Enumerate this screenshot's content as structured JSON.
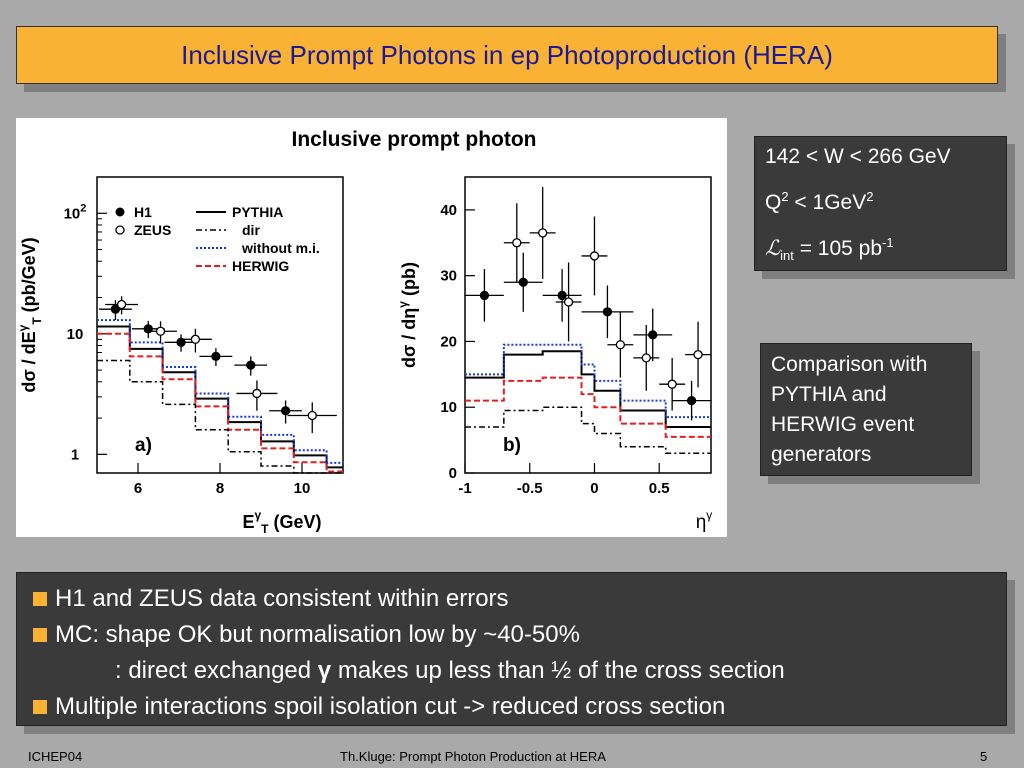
{
  "slide": {
    "title": "Inclusive Prompt Photons in ep Photoproduction (HERA)",
    "info_box": {
      "line1": "142 < W < 266 GeV",
      "line2_q": "Q",
      "line2_q_sup": "2",
      "line2_mid": " < 1GeV",
      "line2_sup": "2",
      "line3_l": "ℒ",
      "line3_sub": "int",
      "line3_mid": " = 105 pb",
      "line3_sup": "-1"
    },
    "comparison_box": "Comparison with PYTHIA and HERWIG event generators",
    "bullets": [
      "H1 and ZEUS data consistent within errors",
      "MC: shape OK but normalisation low by ~40-50%"
    ],
    "indent_line_pre": ": direct exchanged ",
    "indent_line_gamma": "γ",
    "indent_line_post": " makes up less than ½ of the cross section",
    "bullet3": "Multiple interactions spoil isolation cut -> reduced cross section",
    "footer_left": "ICHEP04",
    "footer_center": "Th.Kluge: Prompt Photon Production at HERA",
    "footer_right": "5",
    "colors": {
      "title_bg": "#f9b233",
      "title_text": "#1a1a99",
      "box_bg": "#3a3a3a",
      "bullet": "#f9b233",
      "herwig": "#e02020",
      "mi": "#1a3ad4"
    }
  },
  "chart_data": [
    {
      "type": "line",
      "title": "Inclusive prompt photon",
      "panel_label": "a)",
      "xlabel": "E",
      "xlabel_sup": "γ",
      "xlabel_sub": "T",
      "xlabel_unit": " (GeV)",
      "ylabel": "dσ / dE",
      "ylabel_sup": "γ",
      "ylabel_sub": "T",
      "ylabel_unit": "  (pb/GeV)",
      "xlim": [
        5,
        11
      ],
      "ylim": [
        0.7,
        200
      ],
      "yscale": "log",
      "xticks": [
        6,
        8,
        10
      ],
      "yticks": [
        {
          "v": 1,
          "label": "1"
        },
        {
          "v": 10,
          "label": "10"
        },
        {
          "v": 100,
          "label": "10",
          "sup": "2"
        }
      ],
      "legend": [
        {
          "name": "H1",
          "style": "filled-circle"
        },
        {
          "name": "ZEUS",
          "style": "open-circle"
        },
        {
          "name": "PYTHIA",
          "style": "solid"
        },
        {
          "name": "dir",
          "style": "dashdot"
        },
        {
          "name": "without m.i.",
          "style": "dotted-blue"
        },
        {
          "name": "HERWIG",
          "style": "dashed-red"
        }
      ],
      "bin_edges": [
        5,
        5.8,
        6.6,
        7.4,
        8.2,
        9,
        9.8,
        10.6,
        11
      ],
      "mc": [
        {
          "name": "PYTHIA",
          "values": [
            11.5,
            7.5,
            4.8,
            2.9,
            1.85,
            1.28,
            0.98,
            0.78
          ]
        },
        {
          "name": "without m.i.",
          "values": [
            13,
            8.5,
            5.3,
            3.2,
            2.05,
            1.45,
            1.08,
            0.85
          ]
        },
        {
          "name": "HERWIG",
          "values": [
            10,
            6.5,
            4.2,
            2.5,
            1.6,
            1.12,
            0.86,
            0.72
          ]
        },
        {
          "name": "dir",
          "values": [
            6,
            4,
            2.6,
            1.6,
            1.05,
            0.8,
            0.65,
            0.55
          ]
        }
      ],
      "data": [
        {
          "name": "H1",
          "x": [
            5.45,
            6.25,
            7.05,
            7.9,
            8.75,
            9.6
          ],
          "y": [
            16,
            11,
            8.5,
            6.5,
            5.5,
            2.3
          ],
          "xerr": [
            0.4,
            0.4,
            0.4,
            0.4,
            0.4,
            0.4
          ],
          "yerr": [
            3,
            1.8,
            1.4,
            1.1,
            1,
            0.5
          ]
        },
        {
          "name": "ZEUS",
          "x": [
            5.6,
            6.55,
            7.4,
            8.9,
            10.25
          ],
          "y": [
            17.5,
            10.5,
            9,
            3.2,
            2.1
          ],
          "xerr": [
            0.4,
            0.4,
            0.4,
            0.5,
            0.6
          ],
          "yerr": [
            3,
            2.2,
            2,
            0.9,
            0.6
          ]
        }
      ]
    },
    {
      "type": "line",
      "panel_label": "b)",
      "xlabel": "η",
      "xlabel_sup": "γ",
      "ylabel": "dσ / dη",
      "ylabel_sup": "γ",
      "ylabel_unit": "  (pb)",
      "xlim": [
        -1,
        0.9
      ],
      "ylim": [
        0,
        45
      ],
      "xticks": [
        {
          "v": -1,
          "label": "-1"
        },
        {
          "v": -0.5,
          "label": "-0.5"
        },
        {
          "v": 0,
          "label": "0"
        },
        {
          "v": 0.5,
          "label": "0.5"
        }
      ],
      "yticks": [
        0,
        10,
        20,
        30,
        40
      ],
      "bin_edges": [
        -1,
        -0.7,
        -0.4,
        -0.1,
        0,
        0.2,
        0.55,
        0.9
      ],
      "mc": [
        {
          "name": "PYTHIA",
          "values": [
            14.5,
            18,
            18.5,
            15,
            12.5,
            9.5,
            7
          ]
        },
        {
          "name": "without m.i.",
          "values": [
            15,
            19.5,
            19.5,
            16.5,
            14,
            11,
            8.5
          ]
        },
        {
          "name": "HERWIG",
          "values": [
            11,
            14,
            14.5,
            12,
            10,
            7.5,
            5.5
          ]
        },
        {
          "name": "dir",
          "values": [
            7,
            9.5,
            10,
            7.5,
            6,
            4,
            3
          ]
        }
      ],
      "data": [
        {
          "name": "H1",
          "x": [
            -0.85,
            -0.55,
            -0.25,
            0.1,
            0.45,
            0.75
          ],
          "y": [
            27,
            29,
            27,
            24.5,
            21,
            11
          ],
          "xerr": [
            0.15,
            0.15,
            0.15,
            0.2,
            0.15,
            0.15
          ],
          "yerr": [
            4,
            4.5,
            4,
            4,
            4,
            3
          ]
        },
        {
          "name": "ZEUS",
          "x": [
            -0.6,
            -0.4,
            -0.2,
            0,
            0.2,
            0.4,
            0.6,
            0.8
          ],
          "y": [
            35,
            36.5,
            26,
            33,
            19.5,
            17.5,
            13.5,
            18
          ],
          "xerr": [
            0.1,
            0.1,
            0.1,
            0.1,
            0.1,
            0.1,
            0.1,
            0.1
          ],
          "yerr": [
            6,
            7,
            6,
            6,
            5,
            5,
            4,
            5
          ]
        }
      ]
    }
  ]
}
